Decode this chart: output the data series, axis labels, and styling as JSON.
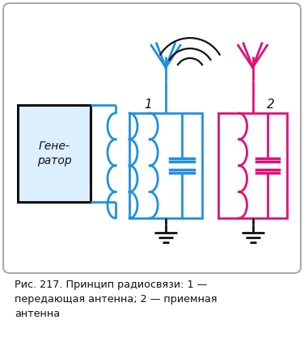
{
  "title": "Рис. 217. Принцип радиосвязи: 1 —\nпередающая антенна; 2 — приемная\nантенна",
  "bg_color": "#ffffff",
  "blue_color": "#2090E0",
  "pink_color": "#E0107A",
  "black_color": "#111111",
  "generator_label": "Гене-\nратор",
  "label1": "1",
  "label2": "2",
  "fig_width": 3.76,
  "fig_height": 4.32,
  "dpi": 100
}
